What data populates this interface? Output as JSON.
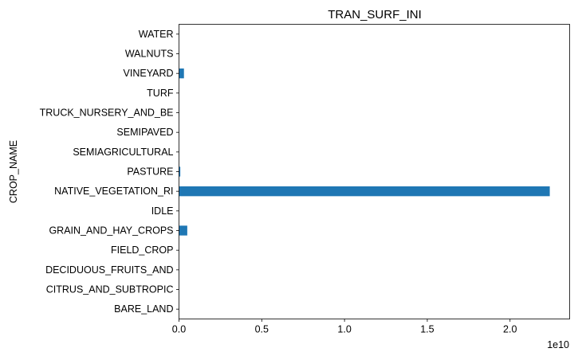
{
  "chart_data": {
    "type": "bar",
    "orientation": "horizontal",
    "title": "TRAN_SURF_INI",
    "ylabel": "CROP_NAME",
    "xlabel": "",
    "x_offset_text": "1e10",
    "categories": [
      "BARE_LAND",
      "CITRUS_AND_SUBTROPIC",
      "DECIDUOUS_FRUITS_AND",
      "FIELD_CROP",
      "GRAIN_AND_HAY_CROPS",
      "IDLE",
      "NATIVE_VEGETATION_RI",
      "PASTURE",
      "SEMIAGRICULTURAL",
      "SEMIPAVED",
      "TRUCK_NURSERY_AND_BE",
      "TURF",
      "VINEYARD",
      "WALNUTS",
      "WATER"
    ],
    "values": [
      0,
      0,
      0,
      0,
      500000000,
      0,
      22400000000,
      80000000,
      0,
      0,
      0,
      0,
      300000000,
      0,
      0
    ],
    "xlim": [
      0,
      23600000000
    ],
    "xticks": [
      0,
      5000000000,
      10000000000,
      15000000000,
      20000000000
    ],
    "xtick_labels": [
      "0.0",
      "0.5",
      "1.0",
      "1.5",
      "2.0"
    ],
    "bar_color": "#1f77b4",
    "grid": false
  }
}
